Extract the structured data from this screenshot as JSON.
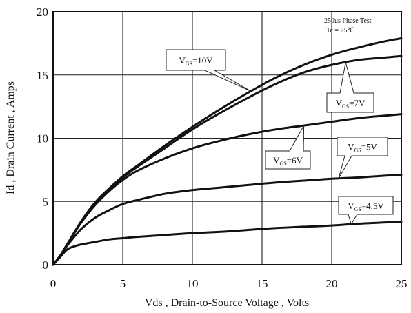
{
  "chart_data": {
    "type": "line",
    "xlabel": "Vds , Drain-to-Source Voltage , Volts",
    "ylabel": "Id , Drain Current , Amps",
    "xlim": [
      0,
      25
    ],
    "ylim": [
      0,
      20
    ],
    "xticks": [
      "0",
      "5",
      "10",
      "15",
      "20",
      "25"
    ],
    "yticks": [
      "0",
      "5",
      "10",
      "15",
      "20"
    ],
    "grid": true,
    "annotation_lines": [
      "250us Phase Test",
      "Tc = 25℃"
    ],
    "series": [
      {
        "name": "VGS=10V",
        "label_main": "V",
        "label_sub": "GS",
        "label_rest": "=10V",
        "x": [
          0,
          0.5,
          1,
          2,
          3,
          4,
          5,
          6,
          8,
          10,
          12,
          14,
          16,
          18,
          20,
          22,
          24,
          25
        ],
        "y": [
          0,
          0.7,
          1.6,
          3.4,
          4.9,
          6.0,
          7.0,
          7.8,
          9.4,
          10.9,
          12.3,
          13.6,
          14.8,
          15.8,
          16.6,
          17.2,
          17.7,
          17.9
        ]
      },
      {
        "name": "VGS=7V",
        "label_main": "V",
        "label_sub": "GS",
        "label_rest": "=7V",
        "x": [
          0,
          0.5,
          1,
          2,
          3,
          4,
          5,
          6,
          8,
          10,
          12,
          14,
          16,
          18,
          20,
          22,
          24,
          25
        ],
        "y": [
          0,
          0.7,
          1.6,
          3.4,
          4.9,
          6.0,
          6.9,
          7.7,
          9.2,
          10.7,
          12.0,
          13.2,
          14.3,
          15.2,
          15.8,
          16.2,
          16.4,
          16.5
        ]
      },
      {
        "name": "VGS=6V",
        "label_main": "V",
        "label_sub": "GS",
        "label_rest": "=6V",
        "x": [
          0,
          0.5,
          1,
          2,
          3,
          4,
          5,
          6,
          8,
          10,
          12,
          14,
          16,
          18,
          20,
          22,
          24,
          25
        ],
        "y": [
          0,
          0.7,
          1.6,
          3.3,
          4.7,
          5.8,
          6.7,
          7.4,
          8.4,
          9.2,
          9.8,
          10.3,
          10.7,
          11.0,
          11.3,
          11.6,
          11.8,
          11.9
        ]
      },
      {
        "name": "VGS=5V",
        "label_main": "V",
        "label_sub": "GS",
        "label_rest": "=5V",
        "x": [
          0,
          0.5,
          1,
          2,
          3,
          4,
          5,
          6,
          8,
          10,
          12,
          14,
          16,
          18,
          20,
          22,
          24,
          25
        ],
        "y": [
          0,
          0.7,
          1.5,
          2.8,
          3.7,
          4.3,
          4.8,
          5.1,
          5.6,
          5.9,
          6.1,
          6.3,
          6.5,
          6.65,
          6.8,
          6.9,
          7.05,
          7.1
        ]
      },
      {
        "name": "VGS=4.5V",
        "label_main": "V",
        "label_sub": "GS",
        "label_rest": "=4.5V",
        "x": [
          0,
          0.5,
          1,
          1.5,
          2,
          3,
          4,
          5,
          6,
          8,
          10,
          12,
          14,
          16,
          18,
          20,
          22,
          24,
          25
        ],
        "y": [
          0,
          0.6,
          1.2,
          1.45,
          1.6,
          1.8,
          2.0,
          2.1,
          2.2,
          2.35,
          2.5,
          2.6,
          2.75,
          2.9,
          3.0,
          3.1,
          3.25,
          3.35,
          3.4
        ]
      }
    ]
  }
}
